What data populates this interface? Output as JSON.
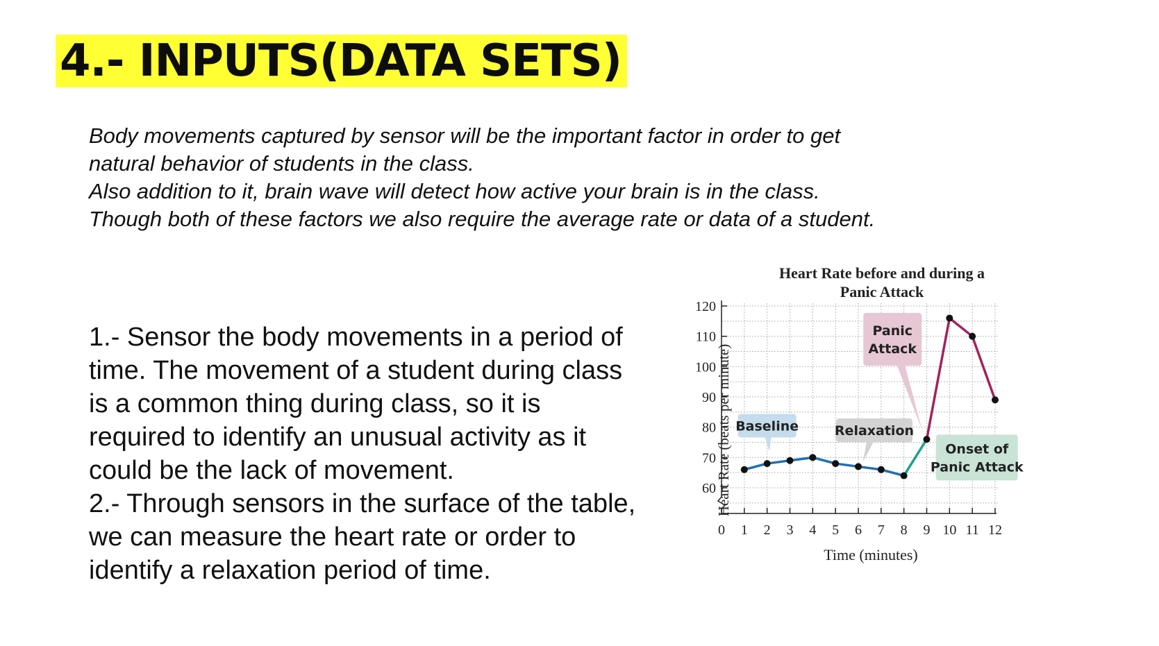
{
  "slide": {
    "title": "4.- INPUTS(DATA SETS)",
    "intro": [
      "Body movements captured by sensor will be the important factor in order to get",
      "natural behavior of students in the class.",
      "Also addition to it, brain wave will detect how active your brain is in the class.",
      "Though both of these factors we also require the average rate or data of a student."
    ],
    "list_items": [
      "1.- Sensor the body movements in a period of time. The movement of a student during class is a common thing during class, so it is required to identify an unusual activity as it could be the lack of movement.",
      "2.- Through sensors in the surface of the table, we can measure the heart rate or order to identify a relaxation period of time."
    ]
  },
  "chart_data": {
    "type": "line",
    "title_lines": [
      "Heart Rate before and during a",
      "Panic Attack"
    ],
    "xlabel": "Time (minutes)",
    "ylabel": "Heart Rate (beats per minute)",
    "xlim": [
      0,
      12
    ],
    "ylim": [
      60,
      120
    ],
    "x_ticks": [
      "0",
      "1",
      "2",
      "3",
      "4",
      "5",
      "6",
      "7",
      "8",
      "9",
      "10",
      "11",
      "12"
    ],
    "y_ticks": [
      "60",
      "70",
      "80",
      "90",
      "100",
      "110",
      "120"
    ],
    "grid": true,
    "axis_break": true,
    "points": [
      {
        "x": 1,
        "y": 66
      },
      {
        "x": 2,
        "y": 68
      },
      {
        "x": 3,
        "y": 69
      },
      {
        "x": 4,
        "y": 70
      },
      {
        "x": 5,
        "y": 68
      },
      {
        "x": 6,
        "y": 67
      },
      {
        "x": 7,
        "y": 66
      },
      {
        "x": 8,
        "y": 64
      },
      {
        "x": 9,
        "y": 76
      },
      {
        "x": 10,
        "y": 116
      },
      {
        "x": 11,
        "y": 110
      },
      {
        "x": 12,
        "y": 89
      }
    ],
    "segments": [
      {
        "from_x": 1,
        "to_x": 8,
        "color": "#1f6fb5"
      },
      {
        "from_x": 8,
        "to_x": 9,
        "color": "#1aa38f"
      },
      {
        "from_x": 9,
        "to_x": 12,
        "color": "#a3225c"
      }
    ],
    "annotations": [
      {
        "lines": [
          "Baseline"
        ],
        "fill": "#c5dced",
        "color": "#1f6fb5"
      },
      {
        "lines": [
          "Relaxation"
        ],
        "fill": "#d3d3d3",
        "color": "#888888"
      },
      {
        "lines": [
          "Panic",
          "Attack"
        ],
        "fill": "#e7c7d4",
        "color": "#a3225c"
      },
      {
        "lines": [
          "Onset of",
          "Panic Attack"
        ],
        "fill": "#c9e4d7",
        "color": "#1aa38f"
      }
    ]
  }
}
